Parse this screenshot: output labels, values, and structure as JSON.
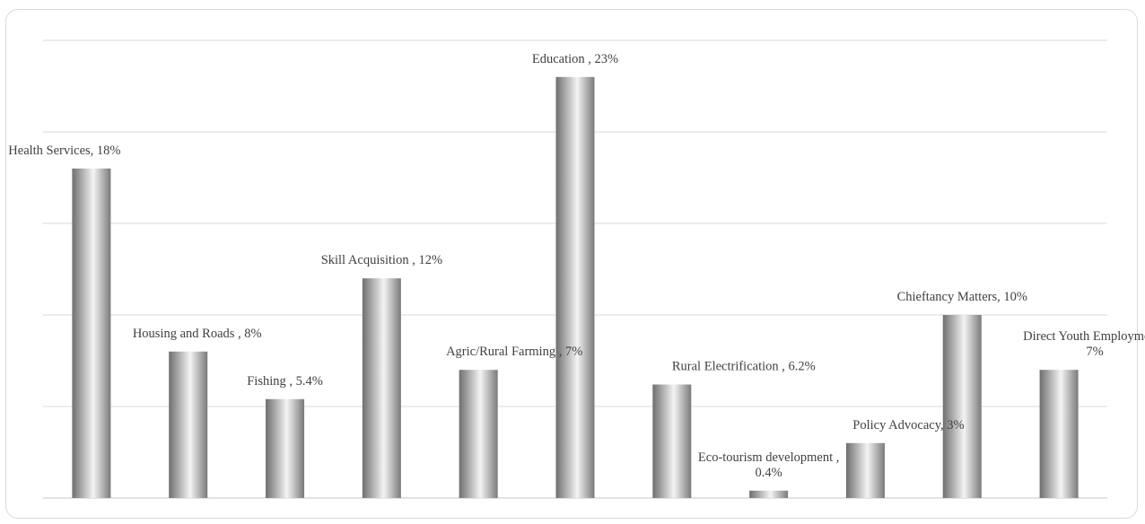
{
  "chart_data": {
    "type": "bar",
    "title": "",
    "xlabel": "",
    "ylabel": "",
    "ylim": [
      0,
      25
    ],
    "grid": true,
    "legend": "none",
    "bar_gradient": [
      "#6e6e6e",
      "#f4f4f4",
      "#7a7a7a"
    ],
    "grid_color": "#d9d9d9",
    "label_color": "#404040",
    "categories": [
      "Health Services",
      "Housing and Roads",
      "Fishing",
      "Skill Acquisition",
      "Agric/Rural Farming",
      "Education",
      "Rural Electrification",
      "Eco-tourism development",
      "Policy Advocacy",
      "Chieftancy Matters",
      "Direct Youth Employment"
    ],
    "values": [
      18,
      8,
      5.4,
      12,
      7,
      23,
      6.2,
      0.4,
      3,
      10,
      7
    ],
    "data_labels": [
      [
        "Health Services, 18%"
      ],
      [
        "Housing and Roads , 8%"
      ],
      [
        "Fishing , 5.4%"
      ],
      [
        "Skill Acquisition , 12%"
      ],
      [
        "Agric/Rural Farming , 7%"
      ],
      [
        "Education , 23%"
      ],
      [
        "Rural Electrification , 6.2%"
      ],
      [
        "Eco-tourism development ,",
        "0.4%"
      ],
      [
        "Policy Advocacy, 3%"
      ],
      [
        "Chieftancy Matters, 10%"
      ],
      [
        "Direct Youth Employment ,",
        "7%"
      ]
    ]
  }
}
